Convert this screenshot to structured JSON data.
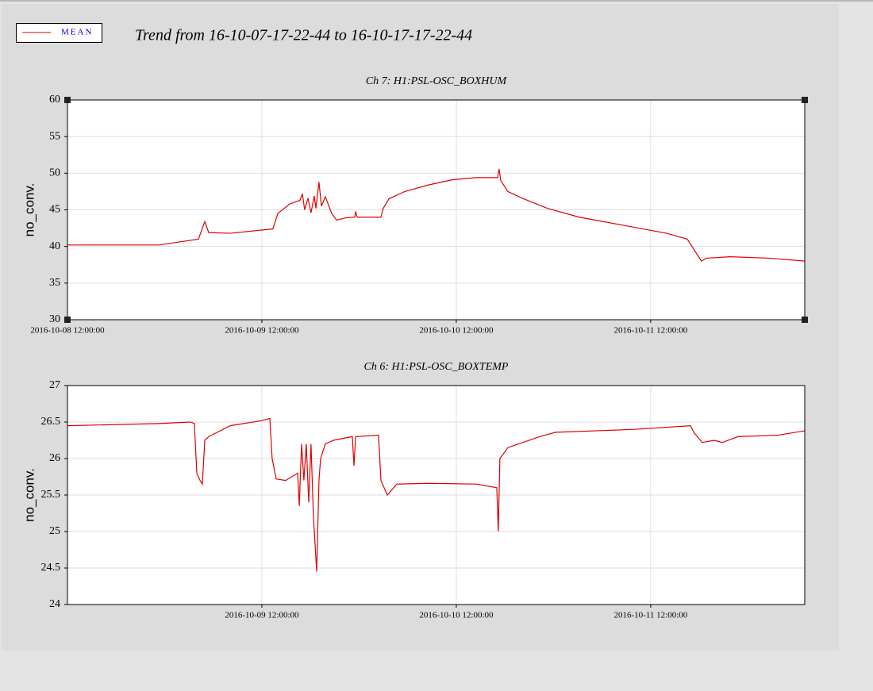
{
  "title": "Trend from 16-10-07-17-22-44 to 16-10-17-17-22-44",
  "chart_data": [
    {
      "type": "line",
      "title": "Ch 7: H1:PSL-OSC_BOXHUM",
      "y_label": "no_conv.",
      "x": [
        "2016-10-08 12:00",
        "2016-10-08 23:16",
        "2016-10-09 04:10",
        "2016-10-09 04:57",
        "2016-10-09 05:26",
        "2016-10-09 08:05",
        "2016-10-09 13:22",
        "2016-10-09 13:58",
        "2016-10-09 15:26",
        "2016-10-09 16:42",
        "2016-10-09 17:00",
        "2016-10-09 17:17",
        "2016-10-09 17:41",
        "2016-10-09 18:04",
        "2016-10-09 18:28",
        "2016-10-09 18:40",
        "2016-10-09 19:03",
        "2016-10-09 19:21",
        "2016-10-09 19:50",
        "2016-10-09 20:37",
        "2016-10-09 21:13",
        "2016-10-09 22:17",
        "2016-10-09 23:28",
        "2016-10-09 23:34",
        "2016-10-09 23:46",
        "2016-10-10 02:42",
        "2016-10-10 02:59",
        "2016-10-10 03:41",
        "2016-10-10 05:38",
        "2016-10-10 08:34",
        "2016-10-10 11:31",
        "2016-10-10 14:27",
        "2016-10-10 17:06",
        "2016-10-10 17:17",
        "2016-10-10 17:29",
        "2016-10-10 18:22",
        "2016-10-10 20:20",
        "2016-10-10 23:16",
        "2016-10-11 03:11",
        "2016-10-11 09:04",
        "2016-10-11 13:58",
        "2016-10-11 16:31",
        "2016-10-11 17:23",
        "2016-10-11 18:16",
        "2016-10-11 18:52",
        "2016-10-11 21:48",
        "2016-10-12 02:42",
        "2016-10-12 07:01"
      ],
      "series": [
        {
          "name": "MEAN",
          "color": "#dd0000",
          "values": [
            40.2,
            40.2,
            41.0,
            43.4,
            41.9,
            41.8,
            42.4,
            44.5,
            45.8,
            46.3,
            47.2,
            45.0,
            46.6,
            44.6,
            46.9,
            45.2,
            48.8,
            45.5,
            46.8,
            44.5,
            43.6,
            43.9,
            44.0,
            44.8,
            44.0,
            44.0,
            45.2,
            46.5,
            47.5,
            48.4,
            49.1,
            49.4,
            49.4,
            50.6,
            49.0,
            47.5,
            46.5,
            45.2,
            44.0,
            42.8,
            41.8,
            41.0,
            39.5,
            38.0,
            38.4,
            38.6,
            38.4,
            38.0
          ]
        }
      ],
      "xlim": [
        "2016-10-08 12:00",
        "2016-10-12 07:01"
      ],
      "xticks": [
        "2016-10-08 12:00:00",
        "2016-10-09 12:00:00",
        "2016-10-10 12:00:00",
        "2016-10-11 12:00:00"
      ],
      "ylim": [
        30,
        60
      ],
      "yticks": [
        30,
        35,
        40,
        45,
        50,
        55,
        60
      ],
      "grid": true
    },
    {
      "type": "line",
      "title": "Ch 6: H1:PSL-OSC_BOXTEMP",
      "y_label": "no_conv.",
      "x": [
        "2016-10-08 12:00",
        "2016-10-08 23:16",
        "2016-10-09 03:11",
        "2016-10-09 03:40",
        "2016-10-09 03:58",
        "2016-10-09 04:22",
        "2016-10-09 04:39",
        "2016-10-09 04:57",
        "2016-10-09 05:26",
        "2016-10-09 08:05",
        "2016-10-09 12:00",
        "2016-10-09 12:59",
        "2016-10-09 13:16",
        "2016-10-09 13:46",
        "2016-10-09 14:56",
        "2016-10-09 16:25",
        "2016-10-09 16:37",
        "2016-10-09 16:54",
        "2016-10-09 17:11",
        "2016-10-09 17:29",
        "2016-10-09 17:47",
        "2016-10-09 18:04",
        "2016-10-09 18:22",
        "2016-10-09 18:46",
        "2016-10-09 19:03",
        "2016-10-09 19:15",
        "2016-10-09 19:50",
        "2016-10-09 20:49",
        "2016-10-09 23:10",
        "2016-10-09 23:22",
        "2016-10-09 23:34",
        "2016-10-10 02:24",
        "2016-10-10 02:42",
        "2016-10-10 03:29",
        "2016-10-10 04:39",
        "2016-10-10 08:34",
        "2016-10-10 14:27",
        "2016-10-10 17:00",
        "2016-10-10 17:11",
        "2016-10-10 17:23",
        "2016-10-10 18:22",
        "2016-10-10 22:17",
        "2016-10-11 00:15",
        "2016-10-11 10:02",
        "2016-10-11 16:54",
        "2016-10-11 17:23",
        "2016-10-11 18:22",
        "2016-10-11 19:50",
        "2016-10-11 20:49",
        "2016-10-11 22:47",
        "2016-10-12 03:41",
        "2016-10-12 07:01"
      ],
      "series": [
        {
          "color": "#dd0000",
          "values": [
            26.45,
            26.48,
            26.5,
            26.48,
            25.8,
            25.7,
            25.65,
            26.25,
            26.3,
            26.45,
            26.52,
            26.55,
            26.0,
            25.72,
            25.7,
            25.8,
            25.35,
            26.2,
            25.7,
            26.2,
            25.4,
            26.2,
            25.2,
            24.45,
            25.7,
            26.0,
            26.2,
            26.25,
            26.3,
            25.9,
            26.3,
            26.32,
            25.7,
            25.5,
            25.65,
            25.66,
            25.65,
            25.6,
            25.0,
            26.0,
            26.15,
            26.3,
            26.36,
            26.4,
            26.45,
            26.35,
            26.22,
            26.25,
            26.22,
            26.3,
            26.32,
            26.38
          ]
        }
      ],
      "xlim": [
        "2016-10-08 12:00",
        "2016-10-12 07:01"
      ],
      "xticks": [
        "2016-10-09 12:00:00",
        "2016-10-10 12:00:00",
        "2016-10-11 12:00:00"
      ],
      "ylim": [
        24,
        27
      ],
      "yticks": [
        24,
        24.5,
        25,
        25.5,
        26,
        26.5,
        27
      ],
      "grid": true
    }
  ]
}
